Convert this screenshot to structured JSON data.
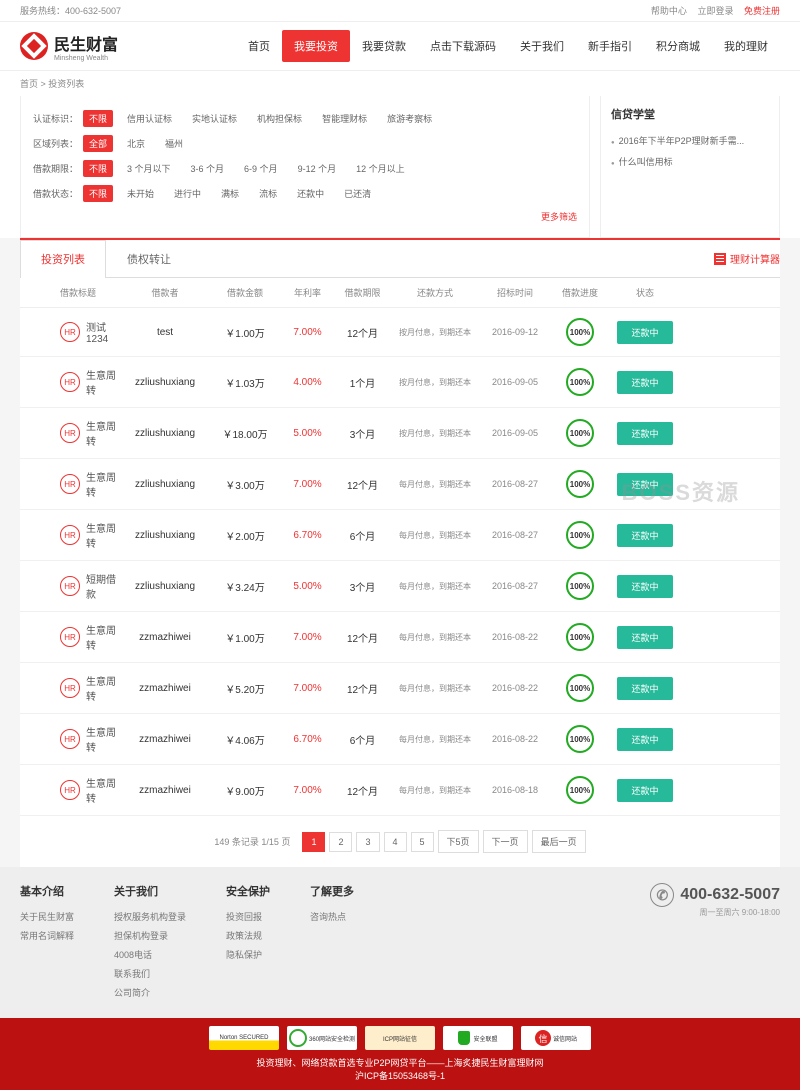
{
  "topbar": {
    "service_label": "服务热线：",
    "phone": "400-632-5007",
    "help": "帮助中心",
    "login": "立即登录",
    "register": "免费注册"
  },
  "logo": {
    "title": "民生财富",
    "sub": "Minsheng Wealth"
  },
  "nav": [
    "首页",
    "我要投资",
    "我要贷款",
    "点击下载源码",
    "关于我们",
    "新手指引",
    "积分商城",
    "我的理财"
  ],
  "nav_active_index": 1,
  "breadcrumb": {
    "home": "首页",
    "current": "投资列表"
  },
  "filters": [
    {
      "label": "认证标识：",
      "all": "不限",
      "options": [
        "信用认证标",
        "实地认证标",
        "机构担保标",
        "智能理财标",
        "旅游考察标"
      ]
    },
    {
      "label": "区域列表：",
      "all": "全部",
      "options": [
        "北京",
        "福州"
      ]
    },
    {
      "label": "借款期限：",
      "all": "不限",
      "options": [
        "3 个月以下",
        "3-6 个月",
        "6-9 个月",
        "9-12 个月",
        "12 个月以上"
      ]
    },
    {
      "label": "借款状态：",
      "all": "不限",
      "options": [
        "未开始",
        "进行中",
        "满标",
        "流标",
        "还款中",
        "已还清"
      ]
    }
  ],
  "more_filter": "更多筛选",
  "sidebar": {
    "title": "信贷学堂",
    "items": [
      "2016年下半年P2P理财新手需...",
      "什么叫信用标"
    ]
  },
  "tabs": [
    "投资列表",
    "债权转让"
  ],
  "calc": "理财计算器",
  "columns": [
    "借款标题",
    "借款者",
    "借款金额",
    "年利率",
    "借款期限",
    "还款方式",
    "招标时间",
    "借款进度",
    "状态"
  ],
  "rows": [
    {
      "badge": "HR",
      "title": "测试1234",
      "borrower": "test",
      "amount": "￥1.00万",
      "rate": "7.00%",
      "term": "12个月",
      "repay": "按月付息，到期还本",
      "date": "2016-09-12",
      "progress": "100%",
      "status": "还款中"
    },
    {
      "badge": "HR",
      "title": "生意周转",
      "borrower": "zzliushuxiang",
      "amount": "￥1.03万",
      "rate": "4.00%",
      "term": "1个月",
      "repay": "按月付息，到期还本",
      "date": "2016-09-05",
      "progress": "100%",
      "status": "还款中"
    },
    {
      "badge": "HR",
      "title": "生意周转",
      "borrower": "zzliushuxiang",
      "amount": "￥18.00万",
      "rate": "5.00%",
      "term": "3个月",
      "repay": "按月付息，到期还本",
      "date": "2016-09-05",
      "progress": "100%",
      "status": "还款中"
    },
    {
      "badge": "HR",
      "title": "生意周转",
      "borrower": "zzliushuxiang",
      "amount": "￥3.00万",
      "rate": "7.00%",
      "term": "12个月",
      "repay": "每月付息，到期还本",
      "date": "2016-08-27",
      "progress": "100%",
      "status": "还款中"
    },
    {
      "badge": "HR",
      "title": "生意周转",
      "borrower": "zzliushuxiang",
      "amount": "￥2.00万",
      "rate": "6.70%",
      "term": "6个月",
      "repay": "每月付息，到期还本",
      "date": "2016-08-27",
      "progress": "100%",
      "status": "还款中"
    },
    {
      "badge": "HR",
      "title": "短期借款",
      "borrower": "zzliushuxiang",
      "amount": "￥3.24万",
      "rate": "5.00%",
      "term": "3个月",
      "repay": "每月付息，到期还本",
      "date": "2016-08-27",
      "progress": "100%",
      "status": "还款中"
    },
    {
      "badge": "HR",
      "title": "生意周转",
      "borrower": "zzmazhiwei",
      "amount": "￥1.00万",
      "rate": "7.00%",
      "term": "12个月",
      "repay": "每月付息，到期还本",
      "date": "2016-08-22",
      "progress": "100%",
      "status": "还款中"
    },
    {
      "badge": "HR",
      "title": "生意周转",
      "borrower": "zzmazhiwei",
      "amount": "￥5.20万",
      "rate": "7.00%",
      "term": "12个月",
      "repay": "每月付息，到期还本",
      "date": "2016-08-22",
      "progress": "100%",
      "status": "还款中"
    },
    {
      "badge": "HR",
      "title": "生意周转",
      "borrower": "zzmazhiwei",
      "amount": "￥4.06万",
      "rate": "6.70%",
      "term": "6个月",
      "repay": "每月付息，到期还本",
      "date": "2016-08-22",
      "progress": "100%",
      "status": "还款中"
    },
    {
      "badge": "HR",
      "title": "生意周转",
      "borrower": "zzmazhiwei",
      "amount": "￥9.00万",
      "rate": "7.00%",
      "term": "12个月",
      "repay": "每月付息，到期还本",
      "date": "2016-08-18",
      "progress": "100%",
      "status": "还款中"
    }
  ],
  "pagination": {
    "info": "149 条记录 1/15 页",
    "pages": [
      "1",
      "2",
      "3",
      "4",
      "5"
    ],
    "next5": "下5页",
    "next": "下一页",
    "last": "最后一页"
  },
  "footer_cols": [
    {
      "title": "基本介绍",
      "links": [
        "关于民生财富",
        "常用名词解释"
      ]
    },
    {
      "title": "关于我们",
      "links": [
        "授权服务机构登录",
        "担保机构登录",
        "4008电话",
        "联系我们",
        "公司简介"
      ]
    },
    {
      "title": "安全保护",
      "links": [
        "投资回报",
        "政策法规",
        "隐私保护"
      ]
    },
    {
      "title": "了解更多",
      "links": [
        "咨询热点"
      ]
    }
  ],
  "footer_phone": {
    "num": "400-632-5007",
    "hours": "周一至周六 9:00-18:00"
  },
  "certs": [
    "Norton SECURED",
    "360网站安全检测",
    "ICP网站征信",
    "安全联盟",
    "诚信网站"
  ],
  "bottom_text1": "投资理财、网络贷款首选专业P2P网贷平台——上海炙捷民生财富理财网",
  "bottom_text2": "沪ICP备15053468号-1",
  "watermark": "BOSS资源",
  "colors": {
    "primary": "#e33",
    "green": "#26b99a",
    "progress": "#2a2"
  }
}
